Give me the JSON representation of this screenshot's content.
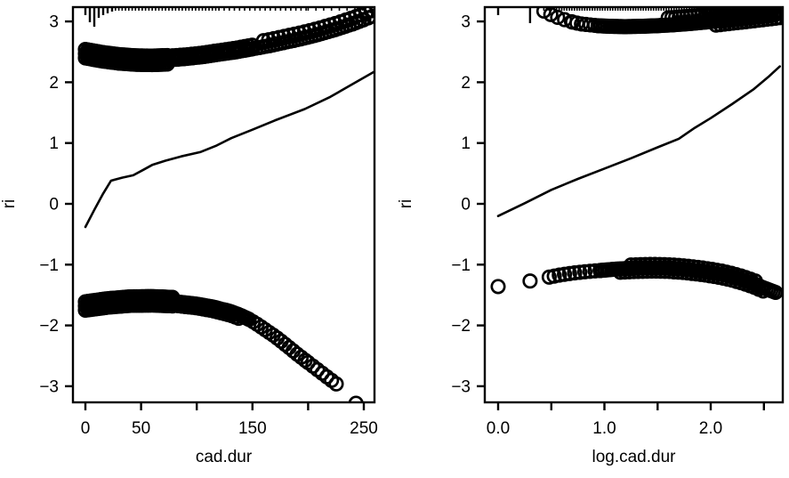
{
  "colors": {
    "foreground": "#000000",
    "background": "#ffffff"
  },
  "chart_data": [
    {
      "type": "scatter",
      "title": "",
      "xlabel": "cad.dur",
      "ylabel": "ri",
      "grid": false,
      "legend": null,
      "xlim": [
        -11,
        260
      ],
      "ylim": [
        -3.27,
        3.24
      ],
      "x_ticks": [
        0,
        50,
        100,
        150,
        200,
        250
      ],
      "x_tick_labels": [
        "0",
        "50",
        "",
        "150",
        "",
        "250"
      ],
      "y_ticks": [
        -3,
        -2,
        -1,
        0,
        1,
        2,
        3
      ],
      "y_tick_labels": [
        "−3",
        "−2",
        "−1",
        "0",
        "1",
        "2",
        "3"
      ],
      "series": {
        "upper_band": {
          "marker": "open-circle",
          "spine": [
            [
              0,
              2.47
            ],
            [
              15,
              2.42
            ],
            [
              30,
              2.385
            ],
            [
              45,
              2.365
            ],
            [
              60,
              2.36
            ],
            [
              75,
              2.37
            ],
            [
              90,
              2.39
            ],
            [
              105,
              2.42
            ],
            [
              120,
              2.46
            ],
            [
              135,
              2.5
            ],
            [
              150,
              2.55
            ],
            [
              165,
              2.6
            ],
            [
              180,
              2.66
            ],
            [
              195,
              2.72
            ],
            [
              210,
              2.79
            ],
            [
              225,
              2.87
            ],
            [
              240,
              2.96
            ],
            [
              250,
              3.03
            ],
            [
              260,
              3.1
            ]
          ],
          "fills": [
            {
              "from": 0,
              "to": 60,
              "step": 1.8,
              "dy": 0
            },
            {
              "from": 0,
              "to": 75,
              "step": 2.3,
              "dy": 0.07
            },
            {
              "from": 0,
              "to": 75,
              "step": 2.3,
              "dy": -0.07
            },
            {
              "from": 60,
              "to": 150,
              "step": 2.6,
              "dy": 0
            },
            {
              "from": 75,
              "to": 150,
              "step": 3.4,
              "dy": 0.06
            },
            {
              "from": 150,
              "to": 250,
              "step": 3.1,
              "dy": 0
            },
            {
              "from": 160,
              "to": 258,
              "step": 4.6,
              "dy": 0.1
            },
            {
              "from": 250,
              "to": 258,
              "step": 4,
              "dy": 0
            }
          ],
          "points": []
        },
        "smooth_line": {
          "points": [
            [
              0,
              -0.38
            ],
            [
              8,
              -0.1
            ],
            [
              16,
              0.17
            ],
            [
              23,
              0.38
            ],
            [
              33,
              0.43
            ],
            [
              43,
              0.47
            ],
            [
              52,
              0.56
            ],
            [
              60,
              0.64
            ],
            [
              72,
              0.71
            ],
            [
              86,
              0.78
            ],
            [
              103,
              0.85
            ],
            [
              118,
              0.96
            ],
            [
              131,
              1.08
            ],
            [
              150,
              1.22
            ],
            [
              170,
              1.37
            ],
            [
              197,
              1.56
            ],
            [
              220,
              1.76
            ],
            [
              240,
              1.97
            ],
            [
              260,
              2.18
            ]
          ]
        },
        "lower_band": {
          "marker": "open-circle",
          "spine": [
            [
              0,
              -1.68
            ],
            [
              20,
              -1.63
            ],
            [
              40,
              -1.6
            ],
            [
              60,
              -1.595
            ],
            [
              80,
              -1.61
            ],
            [
              100,
              -1.65
            ],
            [
              115,
              -1.7
            ],
            [
              130,
              -1.77
            ],
            [
              140,
              -1.84
            ],
            [
              147,
              -1.9
            ],
            [
              155,
              -1.99
            ],
            [
              163,
              -2.09
            ],
            [
              171,
              -2.19
            ],
            [
              180,
              -2.32
            ],
            [
              190,
              -2.47
            ],
            [
              200,
              -2.61
            ],
            [
              210,
              -2.75
            ],
            [
              220,
              -2.89
            ],
            [
              228,
              -3.0
            ],
            [
              243,
              -3.28
            ]
          ],
          "fills": [
            {
              "from": 0,
              "to": 147,
              "step": 1.8,
              "dy": 0
            },
            {
              "from": 0,
              "to": 80,
              "step": 2.3,
              "dy": 0.07
            },
            {
              "from": 0,
              "to": 80,
              "step": 2.3,
              "dy": -0.07
            },
            {
              "from": 80,
              "to": 140,
              "step": 3.2,
              "dy": -0.06
            },
            {
              "from": 147,
              "to": 200,
              "step": 3.6,
              "dy": 0
            },
            {
              "from": 200,
              "to": 228,
              "step": 4.2,
              "dy": 0
            }
          ],
          "points": [
            [
              243,
              -3.28
            ]
          ]
        }
      },
      "rug_top": {
        "long_ticks": [
          [
            0,
            9
          ],
          [
            4,
            17
          ],
          [
            8,
            22
          ],
          [
            12,
            12
          ],
          [
            16,
            9
          ],
          [
            20,
            7
          ],
          [
            24,
            5
          ]
        ],
        "dense": [
          {
            "from": 27,
            "to": 120,
            "step": 3,
            "len": 4
          },
          {
            "from": 120,
            "to": 200,
            "step": 4.6,
            "len": 4
          },
          {
            "from": 200,
            "to": 258,
            "step": 7,
            "len": 4
          }
        ]
      }
    },
    {
      "type": "scatter",
      "title": "",
      "xlabel": "log.cad.dur",
      "ylabel": "ri",
      "grid": false,
      "legend": null,
      "xlim": [
        -0.13,
        2.68
      ],
      "ylim": [
        -3.27,
        3.24
      ],
      "x_ticks": [
        0,
        0.5,
        1.0,
        1.5,
        2.0,
        2.5
      ],
      "x_tick_labels": [
        "0.0",
        "",
        "1.0",
        "",
        "2.0",
        ""
      ],
      "y_ticks": [
        -3,
        -2,
        -1,
        0,
        1,
        2,
        3
      ],
      "y_tick_labels": [
        "−3",
        "−2",
        "−1",
        "0",
        "1",
        "2",
        "3"
      ],
      "series": {
        "upper_band": {
          "marker": "open-circle",
          "spine": [
            [
              0.43,
              3.17
            ],
            [
              0.5,
              3.11
            ],
            [
              0.57,
              3.06
            ],
            [
              0.64,
              3.02
            ],
            [
              0.71,
              2.985
            ],
            [
              0.78,
              2.96
            ],
            [
              0.86,
              2.945
            ],
            [
              0.94,
              2.93
            ],
            [
              1.05,
              2.92
            ],
            [
              1.2,
              2.915
            ],
            [
              1.35,
              2.92
            ],
            [
              1.5,
              2.93
            ],
            [
              1.65,
              2.945
            ],
            [
              1.8,
              2.965
            ],
            [
              1.95,
              2.99
            ],
            [
              2.1,
              3.02
            ],
            [
              2.25,
              3.05
            ],
            [
              2.4,
              3.08
            ],
            [
              2.55,
              3.11
            ],
            [
              2.68,
              3.14
            ]
          ],
          "fills": [
            {
              "from": 0.43,
              "to": 0.7,
              "step": 0.065,
              "dy": 0
            },
            {
              "from": 0.7,
              "to": 0.94,
              "step": 0.042,
              "dy": 0
            },
            {
              "from": 0.94,
              "to": 2.68,
              "step": 0.022,
              "dy": 0
            },
            {
              "from": 1.6,
              "to": 2.68,
              "step": 0.035,
              "dy": 0.12
            },
            {
              "from": 1.95,
              "to": 2.68,
              "step": 0.03,
              "dy": 0.24
            },
            {
              "from": 2.25,
              "to": 2.68,
              "step": 0.03,
              "dy": 0.36
            },
            {
              "from": 2.05,
              "to": 2.68,
              "step": 0.04,
              "dy": -0.07
            }
          ],
          "points": []
        },
        "smooth_line": {
          "points": [
            [
              0.0,
              -0.2
            ],
            [
              0.25,
              0.01
            ],
            [
              0.5,
              0.23
            ],
            [
              0.75,
              0.41
            ],
            [
              1.0,
              0.58
            ],
            [
              1.25,
              0.75
            ],
            [
              1.5,
              0.93
            ],
            [
              1.7,
              1.07
            ],
            [
              1.85,
              1.25
            ],
            [
              2.0,
              1.41
            ],
            [
              2.2,
              1.64
            ],
            [
              2.4,
              1.88
            ],
            [
              2.55,
              2.1
            ],
            [
              2.65,
              2.26
            ]
          ]
        },
        "lower_band": {
          "marker": "open-circle",
          "spine": [
            [
              0.0,
              -1.36
            ],
            [
              0.3,
              -1.27
            ],
            [
              0.48,
              -1.205
            ],
            [
              0.6,
              -1.165
            ],
            [
              0.7,
              -1.14
            ],
            [
              0.8,
              -1.12
            ],
            [
              0.9,
              -1.105
            ],
            [
              1.0,
              -1.09
            ],
            [
              1.1,
              -1.075
            ],
            [
              1.2,
              -1.065
            ],
            [
              1.3,
              -1.057
            ],
            [
              1.4,
              -1.053
            ],
            [
              1.5,
              -1.052
            ],
            [
              1.6,
              -1.057
            ],
            [
              1.7,
              -1.068
            ],
            [
              1.8,
              -1.085
            ],
            [
              1.9,
              -1.105
            ],
            [
              2.0,
              -1.13
            ],
            [
              2.1,
              -1.16
            ],
            [
              2.2,
              -1.2
            ],
            [
              2.3,
              -1.25
            ],
            [
              2.4,
              -1.31
            ],
            [
              2.5,
              -1.385
            ],
            [
              2.57,
              -1.43
            ],
            [
              2.63,
              -1.47
            ]
          ],
          "fills": [
            {
              "from": 0.48,
              "to": 0.96,
              "step": 0.048,
              "dy": 0
            },
            {
              "from": 0.96,
              "to": 2.63,
              "step": 0.022,
              "dy": 0
            },
            {
              "from": 1.15,
              "to": 2.5,
              "step": 0.042,
              "dy": -0.055
            },
            {
              "from": 1.25,
              "to": 2.45,
              "step": 0.045,
              "dy": 0.055
            }
          ],
          "points": [
            [
              0.0,
              -1.36
            ],
            [
              0.3,
              -1.27
            ]
          ]
        }
      },
      "rug_top": {
        "long_ticks": [
          [
            0.0,
            9
          ],
          [
            0.3,
            18
          ]
        ],
        "dense": [
          {
            "from": 0.43,
            "to": 2.67,
            "step": 0.024,
            "len": 4
          }
        ]
      }
    }
  ]
}
